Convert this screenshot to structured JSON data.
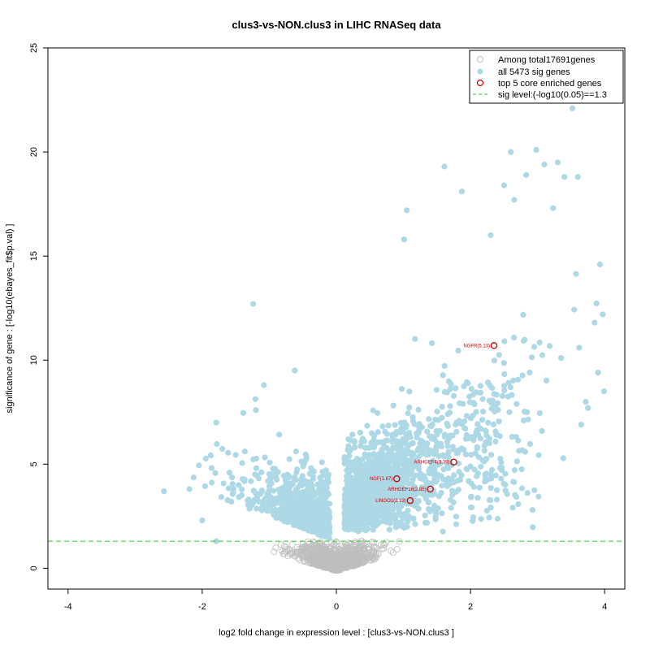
{
  "chart_data": {
    "type": "scatter",
    "title": "clus3-vs-NON.clus3 in LIHC RNASeq data",
    "xlabel": "log2 fold change in expression level : [clus3-vs-NON.clus3 ]",
    "ylabel": "significance of gene : [-log10(ebayes_fit$p.val) ]",
    "xlim": [
      -4.3,
      4.3
    ],
    "ylim": [
      -1.0,
      25.0
    ],
    "xticks": [
      -4,
      -2,
      0,
      2,
      4
    ],
    "yticks": [
      0,
      5,
      10,
      15,
      20,
      25
    ],
    "threshold_y": 1.3,
    "colors": {
      "nonsig": "#bebebe",
      "sig": "#add8e6",
      "core": "#cc0000",
      "threshold": "#22cc22"
    },
    "legend": {
      "position": "top-right",
      "entries": [
        {
          "label": "Among total17691genes",
          "symbol": "open-circle-gray"
        },
        {
          "label": "all 5473 sig genes",
          "symbol": "filled-circle-lightblue"
        },
        {
          "label": "top 5 core enriched genes",
          "symbol": "open-circle-red"
        },
        {
          "label": "sig level:(-log10(0.05)==1.3",
          "symbol": "dashed-line-green"
        }
      ]
    },
    "core_genes": [
      {
        "label": "NGFR(5.13)",
        "x": 2.35,
        "y": 10.7
      },
      {
        "label": "ARHGEF4(3.39)",
        "x": 1.75,
        "y": 5.1
      },
      {
        "label": "NGF(1.87)",
        "x": 0.9,
        "y": 4.3
      },
      {
        "label": "ARHGEF16(2.85)",
        "x": 1.4,
        "y": 3.8
      },
      {
        "label": "LINGO1(2.13)",
        "x": 1.1,
        "y": 3.25
      }
    ],
    "highlighted_sig_points": [
      {
        "x": 3.52,
        "y": 22.1
      },
      {
        "x": 2.98,
        "y": 20.1
      },
      {
        "x": 2.6,
        "y": 20.0
      },
      {
        "x": 3.3,
        "y": 19.5
      },
      {
        "x": 3.1,
        "y": 19.4
      },
      {
        "x": 1.61,
        "y": 19.3
      },
      {
        "x": 2.83,
        "y": 18.9
      },
      {
        "x": 3.4,
        "y": 18.8
      },
      {
        "x": 3.6,
        "y": 18.8
      },
      {
        "x": 2.5,
        "y": 18.4
      },
      {
        "x": 1.87,
        "y": 18.1
      },
      {
        "x": 2.65,
        "y": 17.7
      },
      {
        "x": 3.23,
        "y": 17.3
      },
      {
        "x": 1.05,
        "y": 17.2
      },
      {
        "x": 2.3,
        "y": 16.0
      },
      {
        "x": 1.01,
        "y": 15.8
      },
      {
        "x": 3.93,
        "y": 14.6
      },
      {
        "x": 3.97,
        "y": 12.2
      },
      {
        "x": 3.85,
        "y": 11.8
      },
      {
        "x": 3.62,
        "y": 10.6
      },
      {
        "x": 3.9,
        "y": 9.4
      },
      {
        "x": 3.99,
        "y": 8.5
      },
      {
        "x": 3.75,
        "y": 7.7
      },
      {
        "x": 3.65,
        "y": 6.9
      },
      {
        "x": -1.24,
        "y": 12.7
      },
      {
        "x": -1.08,
        "y": 8.8
      },
      {
        "x": -0.62,
        "y": 9.5
      },
      {
        "x": -1.2,
        "y": 7.6
      },
      {
        "x": -1.79,
        "y": 7.0
      },
      {
        "x": -2.57,
        "y": 3.7
      },
      {
        "x": -2.19,
        "y": 3.8
      },
      {
        "x": -2.0,
        "y": 2.3
      },
      {
        "x": -1.79,
        "y": 1.3
      }
    ]
  }
}
